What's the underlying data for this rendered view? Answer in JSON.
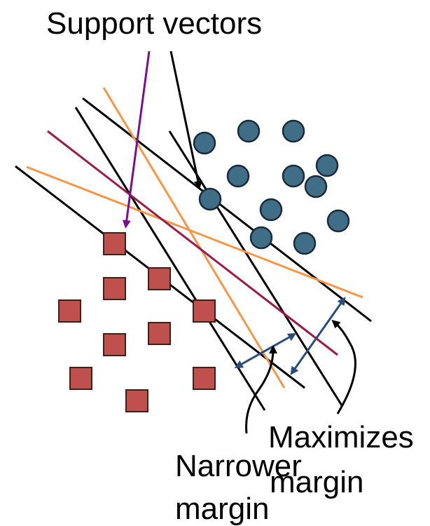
{
  "labels": {
    "support_vectors": "Support vectors",
    "narrower_1": "Narrower",
    "narrower_2": "margin",
    "maximizes_1": "Maximizes",
    "maximizes_2": "margin"
  },
  "colors": {
    "background": "#ffffff",
    "text": "#000000",
    "circle_class": "#3f6e86",
    "square_class": "#c0504d",
    "black_line": "#000000",
    "orange_line": "#f79646",
    "maroon_line": "#9b1b4a",
    "purple_arrow": "#7a0f8a",
    "margin_arrow": "#2a4c7a"
  },
  "icons": {
    "circle": "filled-circle",
    "square": "filled-square"
  }
}
